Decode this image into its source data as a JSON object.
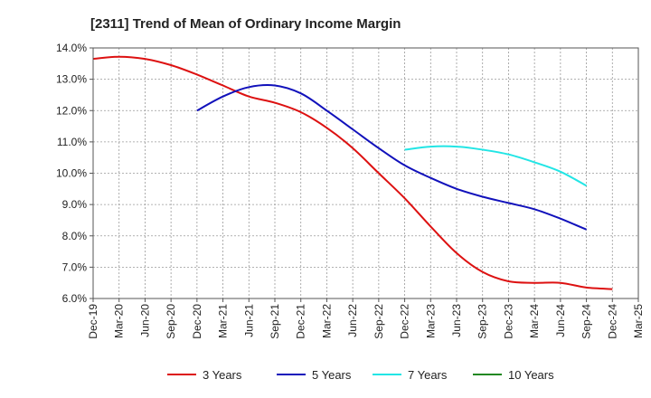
{
  "chart_data": {
    "type": "line",
    "title": "[2311]  Trend of Mean of Ordinary Income Margin",
    "xlabel": "",
    "ylabel": "",
    "ylim": [
      6.0,
      14.0
    ],
    "y_ticks": [
      "6.0%",
      "7.0%",
      "8.0%",
      "9.0%",
      "10.0%",
      "11.0%",
      "12.0%",
      "13.0%",
      "14.0%"
    ],
    "x_ticks": [
      "Dec-19",
      "Mar-20",
      "Jun-20",
      "Sep-20",
      "Dec-20",
      "Mar-21",
      "Jun-21",
      "Sep-21",
      "Dec-21",
      "Mar-22",
      "Jun-22",
      "Sep-22",
      "Dec-22",
      "Mar-23",
      "Jun-23",
      "Sep-23",
      "Dec-23",
      "Mar-24",
      "Jun-24",
      "Sep-24",
      "Dec-24",
      "Mar-25"
    ],
    "grid": true,
    "legend_position": "bottom",
    "series": [
      {
        "name": "3 Years",
        "color": "#dd1111",
        "values": [
          13.65,
          13.72,
          13.65,
          13.45,
          13.15,
          12.8,
          12.45,
          12.25,
          11.95,
          11.45,
          10.8,
          10.0,
          9.2,
          8.3,
          7.45,
          6.85,
          6.55,
          6.5,
          6.5,
          6.35,
          6.3
        ]
      },
      {
        "name": "5 Years",
        "color": "#1111bb",
        "values": [
          null,
          null,
          null,
          null,
          12.0,
          12.45,
          12.75,
          12.8,
          12.55,
          12.0,
          11.4,
          10.8,
          10.25,
          9.85,
          9.5,
          9.25,
          9.05,
          8.85,
          8.55,
          8.2,
          null
        ]
      },
      {
        "name": "7 Years",
        "color": "#22e5e5",
        "values": [
          null,
          null,
          null,
          null,
          null,
          null,
          null,
          null,
          null,
          null,
          null,
          null,
          10.75,
          10.85,
          10.85,
          10.75,
          10.6,
          10.35,
          10.05,
          9.6,
          null
        ]
      },
      {
        "name": "10 Years",
        "color": "#228822",
        "values": []
      }
    ]
  }
}
